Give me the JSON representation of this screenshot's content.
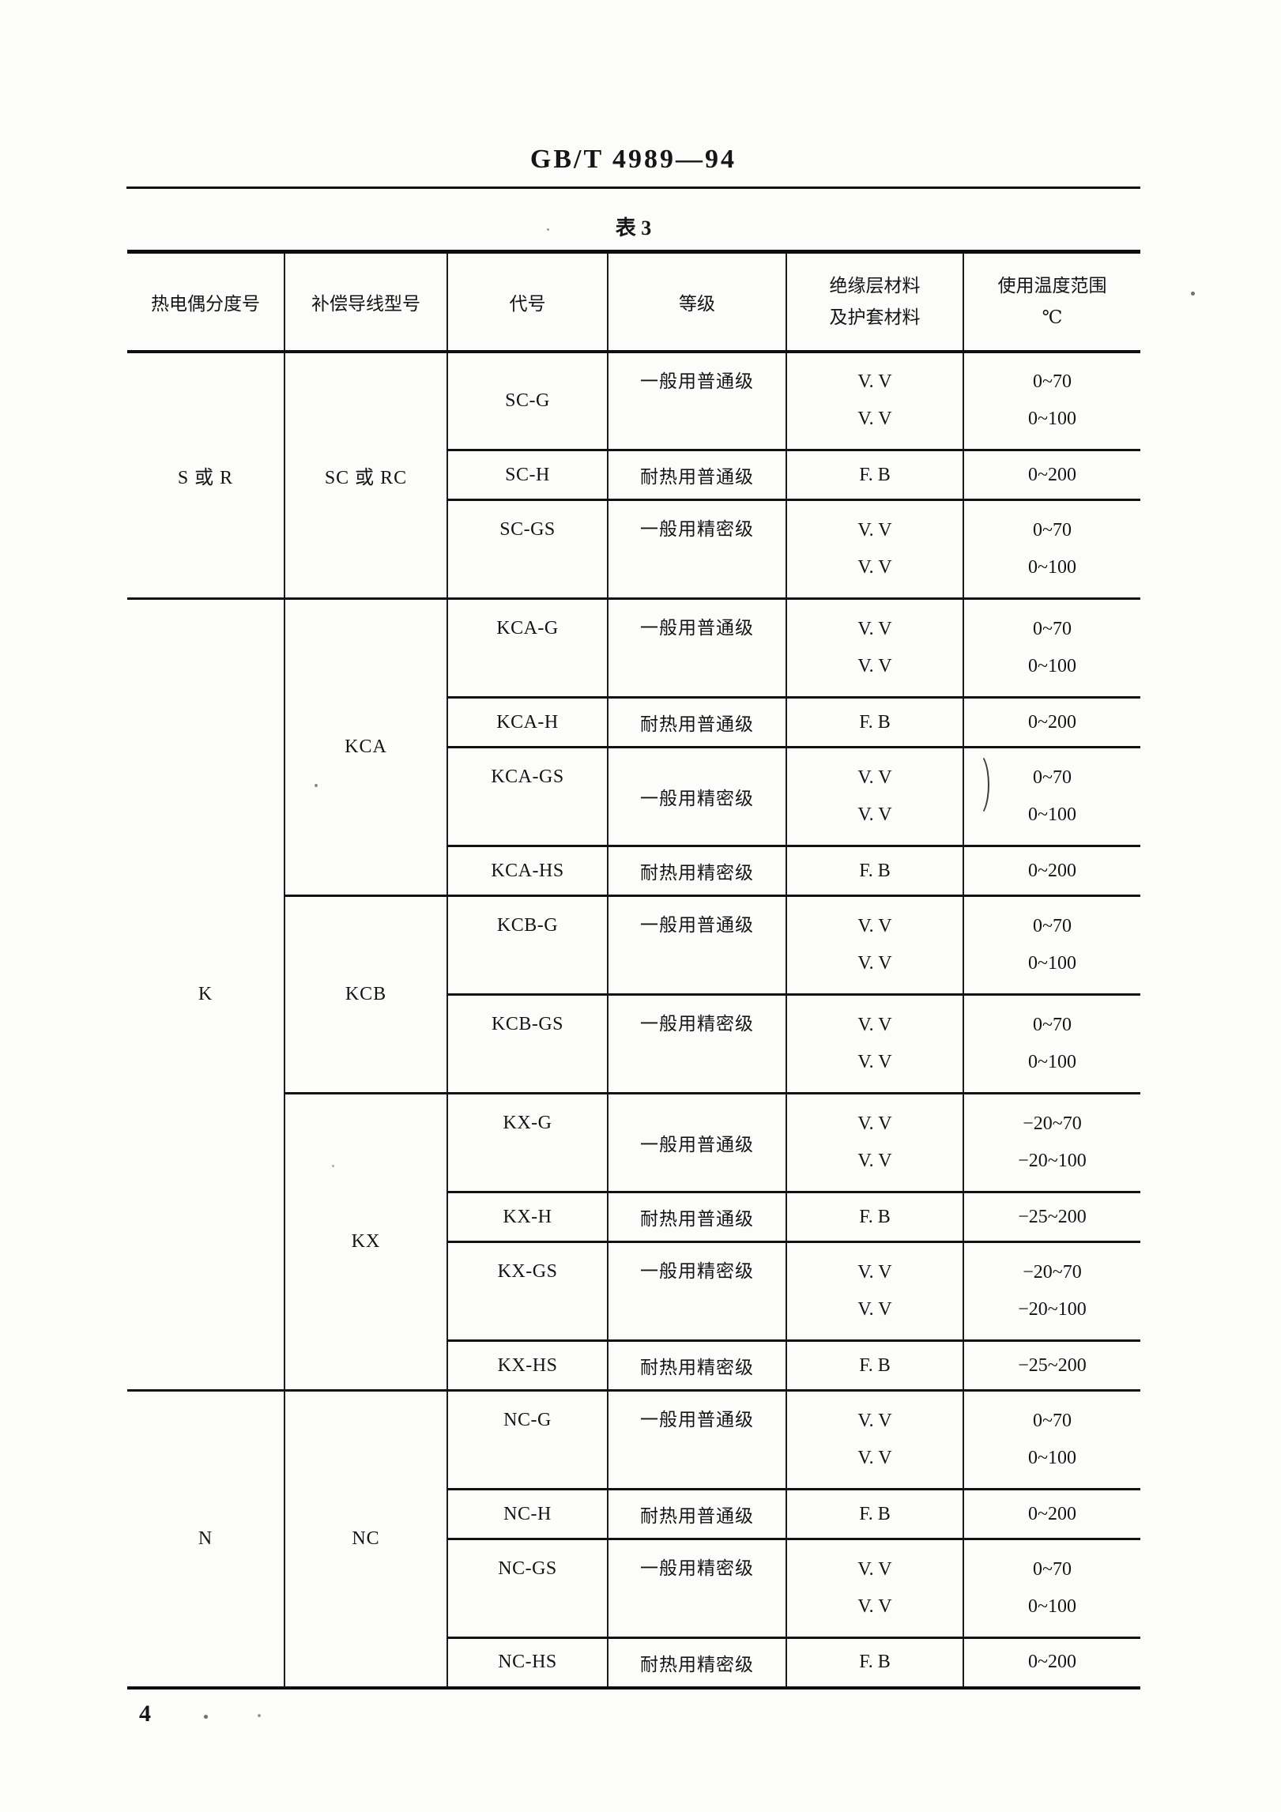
{
  "page": {
    "standard_code": "GB/T 4989—94",
    "table_caption": "表 3",
    "page_number": "4"
  },
  "table": {
    "headers": [
      {
        "lines": [
          "热电偶分度号"
        ]
      },
      {
        "lines": [
          "补偿导线型号"
        ]
      },
      {
        "lines": [
          "代号"
        ]
      },
      {
        "lines": [
          "等级"
        ]
      },
      {
        "lines": [
          "绝缘层材料",
          "及护套材料"
        ]
      },
      {
        "lines": [
          "使用温度范围",
          "℃"
        ]
      }
    ],
    "groups": [
      {
        "thermocouple": "S 或 R",
        "models": [
          {
            "model": "SC 或 RC",
            "rows": [
              {
                "code": "SC-G",
                "grade": "一般用普通级",
                "material": [
                  "V. V",
                  "V. V"
                ],
                "temp_range": [
                  "0~70",
                  "0~100"
                ],
                "code_center": true
              },
              {
                "code": "SC-H",
                "grade": "耐热用普通级",
                "material": [
                  "F. B"
                ],
                "temp_range": [
                  "0~200"
                ]
              },
              {
                "code": "SC-GS",
                "grade": "一般用精密级",
                "material": [
                  "V. V",
                  "V. V"
                ],
                "temp_range": [
                  "0~70",
                  "0~100"
                ]
              }
            ]
          }
        ]
      },
      {
        "thermocouple": "K",
        "models": [
          {
            "model": "KCA",
            "rows": [
              {
                "code": "KCA-G",
                "grade": "一般用普通级",
                "material": [
                  "V. V",
                  "V. V"
                ],
                "temp_range": [
                  "0~70",
                  "0~100"
                ]
              },
              {
                "code": "KCA-H",
                "grade": "耐热用普通级",
                "material": [
                  "F. B"
                ],
                "temp_range": [
                  "0~200"
                ]
              },
              {
                "code": "KCA-GS",
                "grade": "一般用精密级",
                "material": [
                  "V. V",
                  "V. V"
                ],
                "temp_range": [
                  "0~70",
                  "0~100"
                ],
                "grade_center": true
              },
              {
                "code": "KCA-HS",
                "grade": "耐热用精密级",
                "material": [
                  "F. B"
                ],
                "temp_range": [
                  "0~200"
                ]
              }
            ]
          },
          {
            "model": "KCB",
            "rows": [
              {
                "code": "KCB-G",
                "grade": "一般用普通级",
                "material": [
                  "V. V",
                  "V. V"
                ],
                "temp_range": [
                  "0~70",
                  "0~100"
                ]
              },
              {
                "code": "KCB-GS",
                "grade": "一般用精密级",
                "material": [
                  "V. V",
                  "V. V"
                ],
                "temp_range": [
                  "0~70",
                  "0~100"
                ]
              }
            ]
          },
          {
            "model": "KX",
            "rows": [
              {
                "code": "KX-G",
                "grade": "一般用普通级",
                "material": [
                  "V. V",
                  "V. V"
                ],
                "temp_range": [
                  "−20~70",
                  "−20~100"
                ],
                "grade_center": true
              },
              {
                "code": "KX-H",
                "grade": "耐热用普通级",
                "material": [
                  "F. B"
                ],
                "temp_range": [
                  "−25~200"
                ]
              },
              {
                "code": "KX-GS",
                "grade": "一般用精密级",
                "material": [
                  "V. V",
                  "V. V"
                ],
                "temp_range": [
                  "−20~70",
                  "−20~100"
                ]
              },
              {
                "code": "KX-HS",
                "grade": "耐热用精密级",
                "material": [
                  "F. B"
                ],
                "temp_range": [
                  "−25~200"
                ]
              }
            ]
          }
        ]
      },
      {
        "thermocouple": "N",
        "models": [
          {
            "model": "NC",
            "rows": [
              {
                "code": "NC-G",
                "grade": "一般用普通级",
                "material": [
                  "V. V",
                  "V. V"
                ],
                "temp_range": [
                  "0~70",
                  "0~100"
                ]
              },
              {
                "code": "NC-H",
                "grade": "耐热用普通级",
                "material": [
                  "F. B"
                ],
                "temp_range": [
                  "0~200"
                ]
              },
              {
                "code": "NC-GS",
                "grade": "一般用精密级",
                "material": [
                  "V. V",
                  "V. V"
                ],
                "temp_range": [
                  "0~70",
                  "0~100"
                ]
              },
              {
                "code": "NC-HS",
                "grade": "耐热用精密级",
                "material": [
                  "F. B"
                ],
                "temp_range": [
                  "0~200"
                ]
              }
            ]
          }
        ]
      }
    ]
  }
}
